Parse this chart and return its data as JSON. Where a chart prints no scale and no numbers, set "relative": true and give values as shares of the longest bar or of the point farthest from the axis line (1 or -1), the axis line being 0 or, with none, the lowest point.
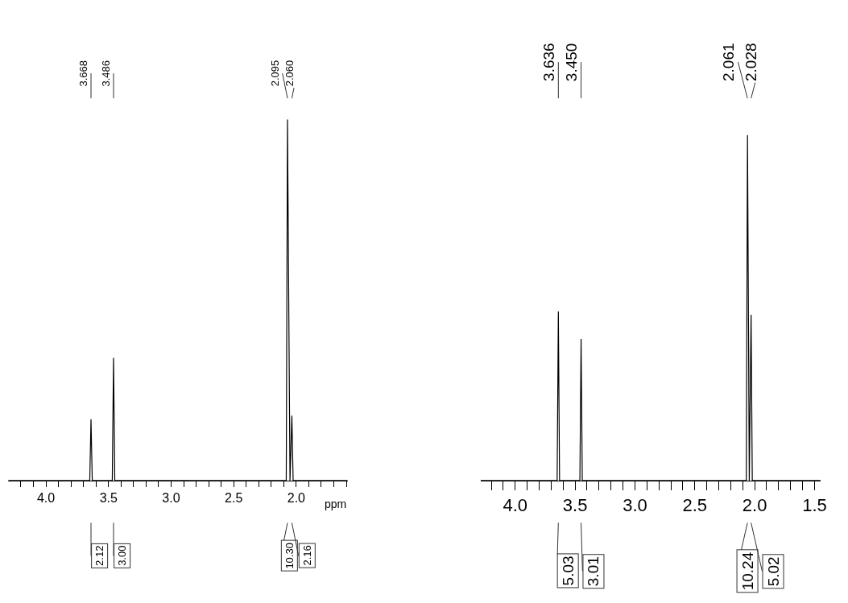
{
  "chart_data": [
    {
      "type": "line",
      "relative": true,
      "xlabel": "ppm",
      "xlim": [
        4.3,
        1.59
      ],
      "tick_labels": "x",
      "xticks": [
        {
          "value": 4.2,
          "label": null
        },
        {
          "value": 4.1,
          "label": null
        },
        {
          "value": 4,
          "label": "4.0"
        },
        {
          "value": 3.9,
          "label": null
        },
        {
          "value": 3.8,
          "label": null
        },
        {
          "value": 3.7,
          "label": null
        },
        {
          "value": 3.6,
          "label": null
        },
        3.5,
        {
          "value": 3.4,
          "label": null
        },
        {
          "value": 3.3,
          "label": null
        },
        {
          "value": 3.2,
          "label": null
        },
        {
          "value": 3.1,
          "label": null
        },
        {
          "value": 3,
          "label": "3.0"
        },
        {
          "value": 2.9,
          "label": null
        },
        {
          "value": 2.8,
          "label": null
        },
        {
          "value": 2.7,
          "label": null
        },
        {
          "value": 2.6,
          "label": null
        },
        2.5,
        {
          "value": 2.4,
          "label": null
        },
        {
          "value": 2.3,
          "label": null
        },
        {
          "value": 2.2,
          "label": null
        },
        {
          "value": 2.1,
          "label": null
        },
        {
          "value": 2,
          "label": "2.0"
        },
        {
          "value": 1.9,
          "label": null
        },
        {
          "value": 1.8,
          "label": null
        },
        {
          "value": 1.7,
          "label": null
        },
        {
          "value": 1.6,
          "label": null
        }
      ],
      "series": [
        {
          "color": "#000000",
          "x": [
            4.3,
            3.65,
            3.64,
            3.63,
            3.47,
            3.46,
            3.45,
            2.08,
            2.07,
            2.05,
            2.035,
            2.025,
            1.59
          ],
          "values": [
            0,
            0,
            0.17,
            0,
            0,
            0.34,
            0,
            0,
            1,
            0,
            0.18,
            0,
            0
          ]
        }
      ],
      "annotations": [
        "3.668",
        "3.486",
        "2.095",
        "2.060",
        "2.12",
        "3.00",
        "10.30",
        "2.16"
      ]
    },
    {
      "type": "line",
      "relative": true,
      "xlim": [
        4.29,
        1.45
      ],
      "tick_labels": "x",
      "xticks": [
        {
          "value": 4.2,
          "label": null
        },
        {
          "value": 4.1,
          "label": null
        },
        {
          "value": 4,
          "label": "4.0"
        },
        {
          "value": 3.9,
          "label": null
        },
        {
          "value": 3.8,
          "label": null
        },
        {
          "value": 3.7,
          "label": null
        },
        {
          "value": 3.6,
          "label": null
        },
        3.5,
        {
          "value": 3.4,
          "label": null
        },
        {
          "value": 3.3,
          "label": null
        },
        {
          "value": 3.2,
          "label": null
        },
        {
          "value": 3.1,
          "label": null
        },
        {
          "value": 3,
          "label": "3.0"
        },
        {
          "value": 2.9,
          "label": null
        },
        {
          "value": 2.8,
          "label": null
        },
        {
          "value": 2.7,
          "label": null
        },
        {
          "value": 2.6,
          "label": null
        },
        2.5,
        {
          "value": 2.4,
          "label": null
        },
        {
          "value": 2.3,
          "label": null
        },
        {
          "value": 2.2,
          "label": null
        },
        {
          "value": 2.1,
          "label": null
        },
        {
          "value": 2,
          "label": "2.0"
        },
        {
          "value": 1.9,
          "label": null
        },
        {
          "value": 1.8,
          "label": null
        },
        {
          "value": 1.7,
          "label": null
        },
        {
          "value": 1.6,
          "label": null
        },
        1.5
      ],
      "series": [
        {
          "color": "#000000",
          "x": [
            4.29,
            3.65,
            3.64,
            3.63,
            3.46,
            3.45,
            3.44,
            2.07,
            2.06,
            2.045,
            2.03,
            2.02,
            1.45
          ],
          "values": [
            0,
            0,
            0.49,
            0,
            0,
            0.41,
            0,
            0,
            1,
            0,
            0.48,
            0,
            0
          ]
        }
      ],
      "annotations": [
        "3.636",
        "3.450",
        "2.061",
        "2.028",
        "5.03",
        "3.01",
        "10.24",
        "5.02"
      ]
    }
  ]
}
